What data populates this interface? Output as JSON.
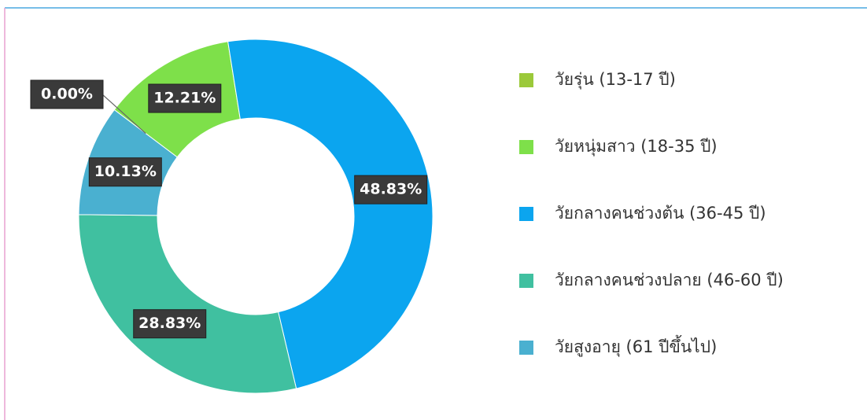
{
  "chart_data": {
    "type": "donut",
    "categories": [
      "วัยรุ่น (13-17 ปี)",
      "วัยหนุ่มสาว (18-35 ปี)",
      "วัยกลางคนช่วงต้น (36-45 ปี)",
      "วัยกลางคนช่วงปลาย (46-60 ปี)",
      "วัยสูงอายุ (61 ปีขึ้นไป)"
    ],
    "series": [
      {
        "values": [
          0,
          12.21,
          48.83,
          28.83,
          10.13
        ],
        "value_labels": [
          "0.00%",
          "12.21%",
          "48.83%",
          "28.83%",
          "10.13%"
        ],
        "colors": [
          "#9bc93a",
          "#7ee04a",
          "#0ba5ef",
          "#40c0a0",
          "#4ab0d0"
        ]
      }
    ],
    "legend": "right"
  }
}
